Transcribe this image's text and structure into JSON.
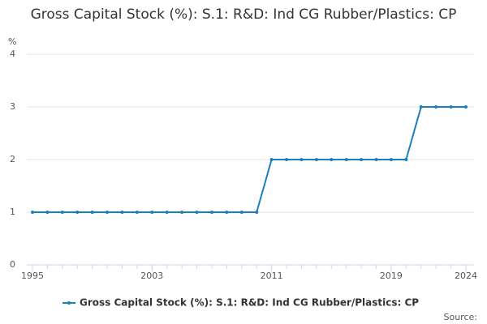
{
  "chart_data": {
    "type": "line",
    "title": "Gross Capital Stock (%): S.1: R&D: Ind CG Rubber/Plastics: CP",
    "y_label": "%",
    "source": "Source:",
    "x": [
      1995,
      1996,
      1997,
      1998,
      1999,
      2000,
      2001,
      2002,
      2003,
      2004,
      2005,
      2006,
      2007,
      2008,
      2009,
      2010,
      2011,
      2012,
      2013,
      2014,
      2015,
      2016,
      2017,
      2018,
      2019,
      2020,
      2021,
      2022,
      2023,
      2024
    ],
    "series": [
      {
        "name": "Gross Capital Stock (%): S.1: R&D: Ind CG Rubber/Plastics: CP",
        "color": "#1a7fbf",
        "values": [
          1,
          1,
          1,
          1,
          1,
          1,
          1,
          1,
          1,
          1,
          1,
          1,
          1,
          1,
          1,
          1,
          2,
          2,
          2,
          2,
          2,
          2,
          2,
          2,
          2,
          2,
          3,
          3,
          3,
          3
        ]
      }
    ],
    "xlim": [
      1995,
      2024
    ],
    "xticks": [
      1995,
      2003,
      2011,
      2019,
      2024
    ],
    "ylim": [
      0,
      4
    ],
    "yticks": [
      0,
      1,
      2,
      3,
      4
    ],
    "grid": true
  }
}
